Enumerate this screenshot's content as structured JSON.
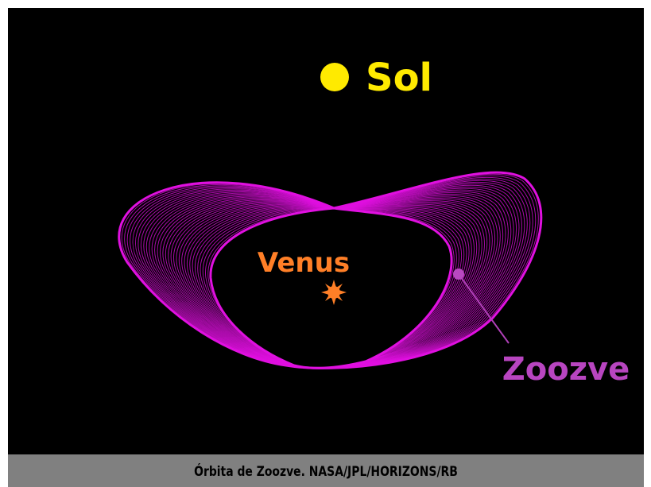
{
  "labels": {
    "sun": "Sol",
    "planet": "Venus",
    "asteroid": "Zoozve"
  },
  "caption": "Órbita de Zoozve. NASA/JPL/HORIZONS/RB"
}
